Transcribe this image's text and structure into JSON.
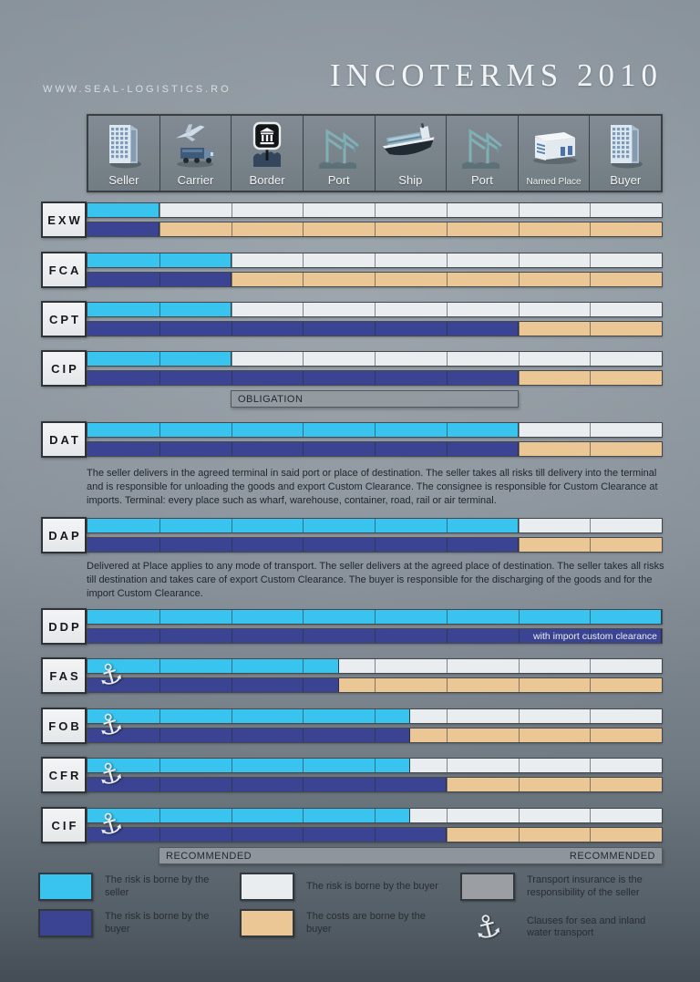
{
  "site": "WWW.SEAL-LOGISTICS.RO",
  "title": "INCOTERMS 2010",
  "colors": {
    "risk_seller": "#38c4ee",
    "risk_buyer": "#eaedef",
    "cost_seller": "#3a4492",
    "cost_buyer": "#ebc795",
    "insurance_gray": "#9b9fa3"
  },
  "header": {
    "columns": [
      {
        "label": "Seller",
        "icon": "seller-building-icon"
      },
      {
        "label": "Carrier",
        "icon": "carrier-icon"
      },
      {
        "label": "Border",
        "icon": "border-sign-icon"
      },
      {
        "label": "Port",
        "icon": "port-cranes-icon"
      },
      {
        "label": "Ship",
        "icon": "ship-icon"
      },
      {
        "label": "Port",
        "icon": "port-cranes-icon"
      },
      {
        "label": "Named Place",
        "icon": "named-place-icon"
      },
      {
        "label": "Buyer",
        "icon": "buyer-building-icon"
      }
    ]
  },
  "chart_data": {
    "type": "bar",
    "stages": [
      "Seller",
      "Carrier",
      "Border",
      "Port",
      "Ship",
      "Port",
      "Named Place",
      "Buyer"
    ],
    "stage_count": 8,
    "bars_per_row": [
      "risk (top)",
      "cost (bottom)"
    ],
    "rows": [
      {
        "code": "EXW",
        "risk_seller_stages": 1,
        "cost_seller_stages": 1,
        "sea_clause": false
      },
      {
        "code": "FCA",
        "risk_seller_stages": 2,
        "cost_seller_stages": 2,
        "sea_clause": false
      },
      {
        "code": "CPT",
        "risk_seller_stages": 2,
        "cost_seller_stages": 6,
        "sea_clause": false
      },
      {
        "code": "CIP",
        "risk_seller_stages": 2,
        "cost_seller_stages": 6,
        "sea_clause": false
      },
      {
        "code": "DAT",
        "risk_seller_stages": 6,
        "cost_seller_stages": 6,
        "sea_clause": false,
        "description": "The seller delivers in the agreed terminal in said port or place of destination. The seller takes all risks till delivery into the terminal and is responsible for unloading the goods and export Custom Clearance. The consignee is responsible for Custom Clearance at imports. Terminal: every place such as wharf, warehouse, container, road, rail or air terminal."
      },
      {
        "code": "DAP",
        "risk_seller_stages": 6,
        "cost_seller_stages": 6,
        "sea_clause": false,
        "description": "Delivered at Place applies to any mode of transport. The seller delivers at the agreed place of destination. The seller takes all risks till destination and takes care of export Custom Clearance. The buyer is responsible for the discharging of the goods and for the import Custom Clearance."
      },
      {
        "code": "DDP",
        "risk_seller_stages": 8,
        "cost_seller_stages": 8,
        "sea_clause": false,
        "cost_note": "with import custom clearance"
      },
      {
        "code": "FAS",
        "risk_seller_stages": 3.5,
        "cost_seller_stages": 3.5,
        "sea_clause": true
      },
      {
        "code": "FOB",
        "risk_seller_stages": 4.5,
        "cost_seller_stages": 4.5,
        "sea_clause": true
      },
      {
        "code": "CFR",
        "risk_seller_stages": 4.5,
        "cost_seller_stages": 5,
        "sea_clause": true
      },
      {
        "code": "CIF",
        "risk_seller_stages": 4.5,
        "cost_seller_stages": 5,
        "sea_clause": true
      }
    ],
    "annotations": [
      {
        "id": "obligation",
        "attached_below": "CIP",
        "from_stage": 2,
        "to_stage": 6,
        "label_left": "OBLIGATION",
        "label_right": ""
      },
      {
        "id": "recommended",
        "attached_below": "CIF",
        "from_stage": 1,
        "to_stage": 8,
        "label_left": "RECOMMENDED",
        "label_right": "RECOMMENDED"
      }
    ]
  },
  "legend": {
    "items": [
      {
        "swatch": "risk_seller",
        "label": "The risk is borne by the seller"
      },
      {
        "swatch": "risk_buyer",
        "label": "The risk is borne by the buyer"
      },
      {
        "swatch": "insurance_gray",
        "label": "Transport insurance is the responsibility of the seller"
      },
      {
        "swatch": "cost_seller",
        "label": "The risk is borne by the buyer"
      },
      {
        "swatch": "cost_buyer",
        "label": "The costs are borne by the buyer"
      },
      {
        "swatch": "anchor",
        "label": "Clauses for sea and inland water transport"
      }
    ]
  }
}
